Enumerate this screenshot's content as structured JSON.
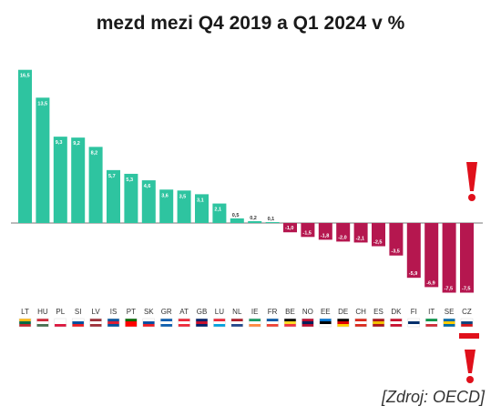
{
  "title": "mezd mezi Q4 2019 a Q1 2024 v %",
  "source": "[Zdroj: OECD]",
  "colors": {
    "positive": "#2ec4a0",
    "negative": "#b5174f",
    "alert": "#e0101b"
  },
  "chart_data": {
    "type": "bar",
    "title": "mezd mezi Q4 2019 a Q1 2024 v %",
    "categories": [
      "LT",
      "HU",
      "PL",
      "SI",
      "LV",
      "IS",
      "PT",
      "SK",
      "GR",
      "AT",
      "GB",
      "LU",
      "NL",
      "IE",
      "FR",
      "BE",
      "NO",
      "EE",
      "DE",
      "CH",
      "ES",
      "DK",
      "FI",
      "IT",
      "SE",
      "CZ"
    ],
    "values": [
      16.5,
      13.5,
      9.3,
      9.2,
      8.2,
      5.7,
      5.3,
      4.6,
      3.6,
      3.5,
      3.1,
      2.1,
      0.5,
      0.2,
      0.1,
      -1.0,
      -1.5,
      -1.8,
      -2.0,
      -2.1,
      -2.5,
      -3.5,
      -5.9,
      -6.9,
      -7.5,
      -7.5
    ],
    "labels": [
      "16,5",
      "13,5",
      "9,3",
      "9,2",
      "8,2",
      "5,7",
      "5,3",
      "4,6",
      "3,6",
      "3,5",
      "3,1",
      "2,1",
      "0,5",
      "0,2",
      "0,1",
      "-1,0",
      "-1,5",
      "-1,8",
      "-2,0",
      "-2,1",
      "-2,5",
      "-3,5",
      "-5,9",
      "-6,9",
      "-7,5",
      "-7,5"
    ],
    "flag_colors": {
      "LT": [
        "#fdb913",
        "#006a44",
        "#c1272d"
      ],
      "HU": [
        "#ce2939",
        "#ffffff",
        "#477050"
      ],
      "PL": [
        "#ffffff",
        "#ffffff",
        "#dc143c"
      ],
      "SI": [
        "#ffffff",
        "#0050a0",
        "#ed1c24"
      ],
      "LV": [
        "#9e3039",
        "#ffffff",
        "#9e3039"
      ],
      "IS": [
        "#02529c",
        "#dc1e35",
        "#02529c"
      ],
      "PT": [
        "#006600",
        "#ff0000",
        "#ff0000"
      ],
      "SK": [
        "#ffffff",
        "#0b4ea2",
        "#ee1c25"
      ],
      "GR": [
        "#0d5eaf",
        "#ffffff",
        "#0d5eaf"
      ],
      "AT": [
        "#ed2939",
        "#ffffff",
        "#ed2939"
      ],
      "GB": [
        "#012169",
        "#c8102e",
        "#012169"
      ],
      "LU": [
        "#ed2939",
        "#ffffff",
        "#00a1de"
      ],
      "NL": [
        "#ae1c28",
        "#ffffff",
        "#21468b"
      ],
      "IE": [
        "#169b62",
        "#ffffff",
        "#ff883e"
      ],
      "FR": [
        "#0055a4",
        "#ffffff",
        "#ef4135"
      ],
      "BE": [
        "#000000",
        "#fdda24",
        "#ef3340"
      ],
      "NO": [
        "#ba0c2f",
        "#00205b",
        "#ba0c2f"
      ],
      "EE": [
        "#0072ce",
        "#000000",
        "#ffffff"
      ],
      "DE": [
        "#000000",
        "#dd0000",
        "#ffce00"
      ],
      "CH": [
        "#da291c",
        "#ffffff",
        "#da291c"
      ],
      "ES": [
        "#aa151b",
        "#f1bf00",
        "#aa151b"
      ],
      "DK": [
        "#c8102e",
        "#ffffff",
        "#c8102e"
      ],
      "FI": [
        "#ffffff",
        "#002f6c",
        "#ffffff"
      ],
      "IT": [
        "#009246",
        "#ffffff",
        "#ce2b37"
      ],
      "SE": [
        "#006aa7",
        "#fecc02",
        "#006aa7"
      ],
      "CZ": [
        "#ffffff",
        "#11457e",
        "#d7141a"
      ]
    }
  }
}
